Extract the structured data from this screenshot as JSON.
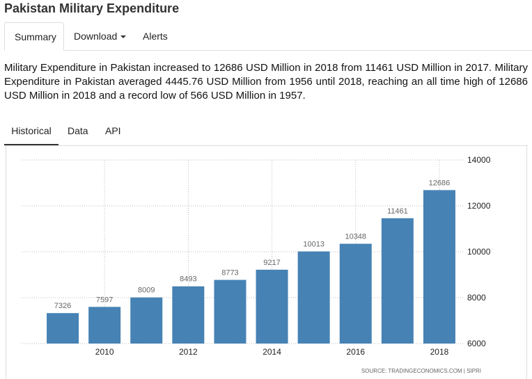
{
  "header": {
    "title": "Pakistan Military Expenditure"
  },
  "tabs": [
    "Summary",
    "Download",
    "Alerts"
  ],
  "description": "Military Expenditure in Pakistan increased to 12686 USD Million in 2018 from 11461 USD Million in 2017. Military Expenditure in Pakistan averaged 4445.76 USD Million from 1956 until 2018, reaching an all time high of 12686 USD Million in 2018 and a record low of 566 USD Million in 1957.",
  "subtabs": [
    "Historical",
    "Data",
    "API"
  ],
  "chart_data": {
    "type": "bar",
    "categories": [
      null,
      "2010",
      null,
      "2012",
      null,
      "2014",
      null,
      "2016",
      null,
      "2018"
    ],
    "values": [
      7326,
      7597,
      8009,
      8493,
      8773,
      9217,
      10013,
      10348,
      11461,
      12686
    ],
    "color": "#4682b4",
    "ylim": [
      6000,
      14000
    ],
    "yticks": [
      6000,
      8000,
      10000,
      12000,
      14000
    ],
    "grid": true,
    "source": "SOURCE: TRADINGECONOMICS.COM | SIPRI"
  }
}
